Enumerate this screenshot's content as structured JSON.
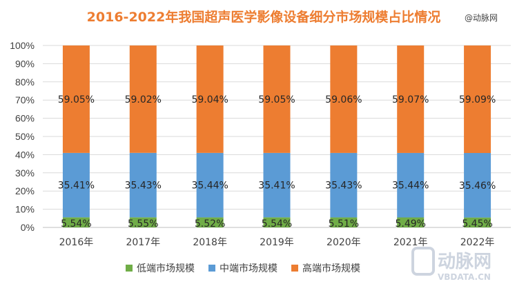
{
  "chart_data": {
    "type": "bar",
    "stacked": true,
    "title": "2016-2022年我国超声医学影像设备细分市场规模占比情况",
    "categories": [
      "2016年",
      "2017年",
      "2018年",
      "2019年",
      "2020年",
      "2021年",
      "2022年"
    ],
    "series": [
      {
        "name": "低端市场规模",
        "color": "#70AD47",
        "values": [
          5.54,
          5.55,
          5.52,
          5.54,
          5.51,
          5.49,
          5.45
        ],
        "labels": [
          "5.54%",
          "5.55%",
          "5.52%",
          "5.54%",
          "5.51%",
          "5.49%",
          "5.45%"
        ]
      },
      {
        "name": "中端市场规模",
        "color": "#5B9BD5",
        "values": [
          35.41,
          35.43,
          35.44,
          35.41,
          35.43,
          35.44,
          35.46
        ],
        "labels": [
          "35.41%",
          "35.43%",
          "35.44%",
          "35.41%",
          "35.43%",
          "35.44%",
          "35.46%"
        ]
      },
      {
        "name": "高端市场规模",
        "color": "#ED7D31",
        "values": [
          59.05,
          59.02,
          59.04,
          59.05,
          59.06,
          59.07,
          59.09
        ],
        "labels": [
          "59.05%",
          "59.02%",
          "59.04%",
          "59.05%",
          "59.06%",
          "59.07%",
          "59.09%"
        ]
      }
    ],
    "ylim": [
      0,
      100
    ],
    "yticks": [
      "0%",
      "10%",
      "20%",
      "30%",
      "40%",
      "50%",
      "60%",
      "70%",
      "80%",
      "90%",
      "100%"
    ],
    "grid": true,
    "legend_position": "bottom"
  },
  "source_note": "@动脉网",
  "watermark": {
    "brand": "动脉网",
    "url": "VBDATA.CN"
  }
}
